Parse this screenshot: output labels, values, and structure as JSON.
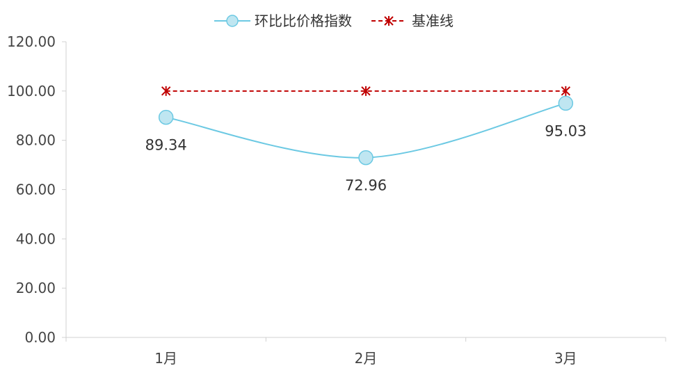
{
  "chart_data": {
    "type": "line",
    "categories": [
      "1月",
      "2月",
      "3月"
    ],
    "series": [
      {
        "name": "环比比价格指数",
        "values": [
          89.34,
          72.96,
          95.03
        ],
        "color": "#6cc9e3",
        "style": "smooth-line-circle-markers",
        "data_labels": [
          "89.34",
          "72.96",
          "95.03"
        ]
      },
      {
        "name": "基准线",
        "values": [
          100,
          100,
          100
        ],
        "color": "#c00000",
        "style": "dashed-line-star-markers"
      }
    ],
    "ylim": [
      0,
      120
    ],
    "yticks": [
      "0.00",
      "20.00",
      "40.00",
      "60.00",
      "80.00",
      "100.00",
      "120.00"
    ],
    "legend": "top-center",
    "grid": false
  }
}
